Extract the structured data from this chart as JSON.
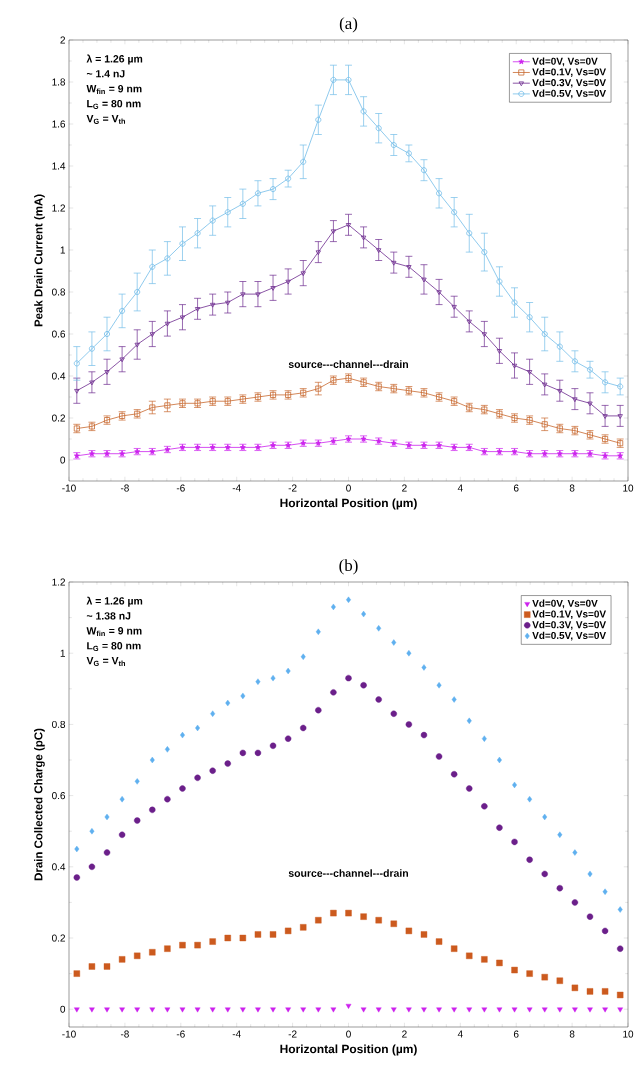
{
  "chart_data": [
    {
      "type": "line",
      "title": "(a)",
      "xlabel": "Horizontal Position (µm)",
      "ylabel": "Peak Drain Current (mA)",
      "annotations": [
        "λ = 1.26 µm",
        "~ 1.4 nJ",
        "W$_{fin}$ = 9 nm",
        "L$_{G}$ = 80 nm",
        "V$_{G}$ = V$_{th}$",
        "source---channel---drain"
      ],
      "x": [
        -9.72,
        -9.18,
        -8.64,
        -8.1,
        -7.56,
        -7.02,
        -6.48,
        -5.94,
        -5.4,
        -4.86,
        -4.32,
        -3.78,
        -3.24,
        -2.7,
        -2.16,
        -1.62,
        -1.08,
        -0.54,
        0,
        0.54,
        1.08,
        1.62,
        2.16,
        2.7,
        3.24,
        3.78,
        4.32,
        4.86,
        5.4,
        5.94,
        6.48,
        7.02,
        7.56,
        8.1,
        8.64,
        9.18,
        9.72
      ],
      "series": [
        {
          "name": "Vd=0V, Vs=0V",
          "color": "#cc22ee",
          "marker": "star",
          "values": [
            0.02,
            0.03,
            0.03,
            0.03,
            0.04,
            0.04,
            0.05,
            0.06,
            0.06,
            0.06,
            0.06,
            0.06,
            0.06,
            0.07,
            0.07,
            0.08,
            0.08,
            0.09,
            0.1,
            0.1,
            0.09,
            0.08,
            0.07,
            0.07,
            0.07,
            0.06,
            0.06,
            0.04,
            0.04,
            0.04,
            0.03,
            0.03,
            0.03,
            0.03,
            0.03,
            0.02,
            0.02
          ],
          "errors": [
            0.015,
            0.015,
            0.015,
            0.015,
            0.015,
            0.015,
            0.015,
            0.015,
            0.015,
            0.015,
            0.015,
            0.015,
            0.015,
            0.015,
            0.015,
            0.015,
            0.015,
            0.015,
            0.015,
            0.015,
            0.015,
            0.015,
            0.015,
            0.015,
            0.015,
            0.015,
            0.015,
            0.015,
            0.015,
            0.015,
            0.015,
            0.015,
            0.015,
            0.015,
            0.015,
            0.015,
            0.015
          ]
        },
        {
          "name": "Vd=0.1V, Vs=0V",
          "color": "#c8682e",
          "marker": "square",
          "values": [
            0.15,
            0.16,
            0.19,
            0.21,
            0.22,
            0.25,
            0.26,
            0.27,
            0.27,
            0.28,
            0.28,
            0.29,
            0.3,
            0.31,
            0.31,
            0.32,
            0.34,
            0.38,
            0.39,
            0.37,
            0.35,
            0.34,
            0.33,
            0.32,
            0.3,
            0.28,
            0.25,
            0.24,
            0.22,
            0.2,
            0.19,
            0.17,
            0.15,
            0.14,
            0.12,
            0.1,
            0.08
          ],
          "errors": [
            0.02,
            0.02,
            0.02,
            0.02,
            0.02,
            0.03,
            0.03,
            0.02,
            0.02,
            0.02,
            0.02,
            0.02,
            0.02,
            0.02,
            0.02,
            0.02,
            0.03,
            0.02,
            0.02,
            0.02,
            0.02,
            0.02,
            0.02,
            0.02,
            0.02,
            0.02,
            0.02,
            0.02,
            0.02,
            0.02,
            0.02,
            0.03,
            0.02,
            0.02,
            0.02,
            0.02,
            0.02
          ]
        },
        {
          "name": "Vd=0.3V, Vs=0V",
          "color": "#6c2a8e",
          "marker": "triangle",
          "values": [
            0.33,
            0.37,
            0.42,
            0.48,
            0.55,
            0.6,
            0.65,
            0.68,
            0.72,
            0.74,
            0.75,
            0.79,
            0.79,
            0.82,
            0.85,
            0.89,
            0.99,
            1.09,
            1.12,
            1.06,
            1.0,
            0.94,
            0.92,
            0.86,
            0.8,
            0.73,
            0.66,
            0.6,
            0.52,
            0.45,
            0.42,
            0.36,
            0.33,
            0.29,
            0.27,
            0.21,
            0.21
          ],
          "errors": [
            0.06,
            0.05,
            0.06,
            0.06,
            0.07,
            0.06,
            0.06,
            0.06,
            0.05,
            0.05,
            0.05,
            0.06,
            0.06,
            0.06,
            0.06,
            0.06,
            0.05,
            0.05,
            0.05,
            0.05,
            0.05,
            0.05,
            0.05,
            0.07,
            0.06,
            0.05,
            0.05,
            0.06,
            0.06,
            0.06,
            0.06,
            0.05,
            0.05,
            0.05,
            0.05,
            0.05,
            0.05
          ]
        },
        {
          "name": "Vd=0.5V, Vs=0V",
          "color": "#72bde8",
          "marker": "circle",
          "values": [
            0.46,
            0.53,
            0.6,
            0.71,
            0.8,
            0.92,
            0.96,
            1.03,
            1.08,
            1.14,
            1.18,
            1.22,
            1.27,
            1.29,
            1.34,
            1.42,
            1.62,
            1.81,
            1.81,
            1.66,
            1.58,
            1.5,
            1.46,
            1.38,
            1.27,
            1.18,
            1.08,
            0.99,
            0.85,
            0.75,
            0.68,
            0.6,
            0.54,
            0.47,
            0.43,
            0.37,
            0.35
          ],
          "errors": [
            0.08,
            0.08,
            0.08,
            0.08,
            0.09,
            0.08,
            0.08,
            0.08,
            0.07,
            0.07,
            0.07,
            0.07,
            0.06,
            0.05,
            0.04,
            0.08,
            0.07,
            0.07,
            0.07,
            0.07,
            0.07,
            0.05,
            0.04,
            0.05,
            0.07,
            0.07,
            0.09,
            0.09,
            0.07,
            0.07,
            0.07,
            0.08,
            0.07,
            0.05,
            0.04,
            0.05,
            0.04
          ]
        }
      ],
      "xlim": [
        -10,
        10
      ],
      "ylim": [
        -0.1,
        2
      ],
      "xticks": [
        -10,
        -8,
        -6,
        -4,
        -2,
        0,
        2,
        4,
        6,
        8,
        10
      ],
      "yticks": [
        0,
        0.2,
        0.4,
        0.6,
        0.8,
        1,
        1.2,
        1.4,
        1.6,
        1.8,
        2
      ],
      "legend": "top right"
    },
    {
      "type": "scatter",
      "title": "(b)",
      "xlabel": "Horizontal Position (µm)",
      "ylabel": "Drain Collected Charge (pC)",
      "annotations": [
        "λ = 1.26 µm",
        "~ 1.38 nJ",
        "W$_{fin}$ = 9 nm",
        "L$_{G}$ = 80 nm",
        "V$_{G}$ = V$_{th}$",
        "source---channel---drain"
      ],
      "x": [
        -9.72,
        -9.18,
        -8.64,
        -8.1,
        -7.56,
        -7.02,
        -6.48,
        -5.94,
        -5.4,
        -4.86,
        -4.32,
        -3.78,
        -3.24,
        -2.7,
        -2.16,
        -1.62,
        -1.08,
        -0.54,
        0,
        0.54,
        1.08,
        1.62,
        2.16,
        2.7,
        3.24,
        3.78,
        4.32,
        4.86,
        5.4,
        5.94,
        6.48,
        7.02,
        7.56,
        8.1,
        8.64,
        9.18,
        9.72
      ],
      "series": [
        {
          "name": "Vd=0V, Vs=0V",
          "color": "#cc22ee",
          "marker": "triangle",
          "values": [
            0,
            0,
            0,
            0,
            0,
            0,
            0,
            0,
            0,
            0,
            0,
            0,
            0,
            0,
            0,
            0,
            0,
            0,
            0.01,
            0,
            0,
            0,
            0,
            0,
            0,
            0,
            0,
            0,
            0,
            0,
            0,
            0,
            0,
            0,
            0,
            0,
            0
          ]
        },
        {
          "name": "Vd=0.1V, Vs=0V",
          "color": "#cc5a1e",
          "marker": "square",
          "values": [
            0.1,
            0.12,
            0.12,
            0.14,
            0.15,
            0.16,
            0.17,
            0.18,
            0.18,
            0.19,
            0.2,
            0.2,
            0.21,
            0.21,
            0.22,
            0.23,
            0.25,
            0.27,
            0.27,
            0.26,
            0.25,
            0.24,
            0.22,
            0.21,
            0.19,
            0.17,
            0.15,
            0.14,
            0.13,
            0.11,
            0.1,
            0.09,
            0.08,
            0.06,
            0.05,
            0.05,
            0.04
          ]
        },
        {
          "name": "Vd=0.3V, Vs=0V",
          "color": "#6b1f8a",
          "marker": "circle",
          "values": [
            0.37,
            0.4,
            0.44,
            0.49,
            0.53,
            0.56,
            0.59,
            0.62,
            0.65,
            0.67,
            0.69,
            0.72,
            0.72,
            0.74,
            0.76,
            0.79,
            0.84,
            0.89,
            0.93,
            0.91,
            0.87,
            0.83,
            0.8,
            0.77,
            0.71,
            0.66,
            0.62,
            0.57,
            0.51,
            0.47,
            0.42,
            0.38,
            0.34,
            0.3,
            0.26,
            0.22,
            0.17
          ]
        },
        {
          "name": "Vd=0.5V, Vs=0V",
          "color": "#5fb0ef",
          "marker": "diamond",
          "values": [
            0.45,
            0.5,
            0.54,
            0.59,
            0.64,
            0.7,
            0.73,
            0.77,
            0.79,
            0.83,
            0.86,
            0.88,
            0.92,
            0.93,
            0.95,
            0.99,
            1.06,
            1.13,
            1.15,
            1.11,
            1.07,
            1.03,
            1.0,
            0.96,
            0.91,
            0.87,
            0.81,
            0.76,
            0.7,
            0.63,
            0.59,
            0.54,
            0.49,
            0.44,
            0.38,
            0.33,
            0.28
          ]
        }
      ],
      "xlim": [
        -10,
        10
      ],
      "ylim": [
        -0.05,
        1.2
      ],
      "xticks": [
        -10,
        -8,
        -6,
        -4,
        -2,
        0,
        2,
        4,
        6,
        8,
        10
      ],
      "yticks": [
        0,
        0.2,
        0.4,
        0.6,
        0.8,
        1,
        1.2
      ],
      "legend": "top right"
    }
  ]
}
